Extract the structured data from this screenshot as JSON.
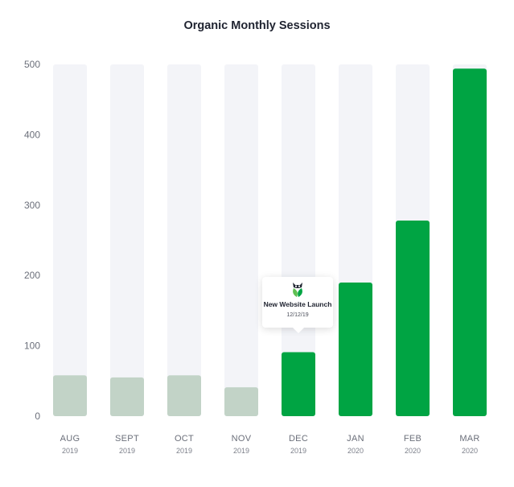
{
  "chart_data": {
    "type": "bar",
    "title": "Organic Monthly Sessions",
    "categories": [
      "AUG",
      "SEPT",
      "OCT",
      "NOV",
      "DEC",
      "JAN",
      "FEB",
      "MAR"
    ],
    "years": [
      "2019",
      "2019",
      "2019",
      "2019",
      "2019",
      "2020",
      "2020",
      "2020"
    ],
    "values": [
      58,
      55,
      58,
      41,
      91,
      190,
      278,
      494
    ],
    "ylim": [
      0,
      500
    ],
    "yticks": [
      0,
      100,
      200,
      300,
      400,
      500
    ],
    "xlabel": "",
    "ylabel": "",
    "grid": false,
    "annotation": {
      "category": "DEC",
      "title": "New Website Launch",
      "date": "12/12/19"
    }
  },
  "colors": {
    "track": "#f3f4f8",
    "before_launch": "#c2d3c7",
    "after_launch": "#00a443",
    "axis_text": "#6b6f7a",
    "title_text": "#1f2330"
  },
  "icons": {
    "annotation": "owl-leaf-logo-icon"
  }
}
